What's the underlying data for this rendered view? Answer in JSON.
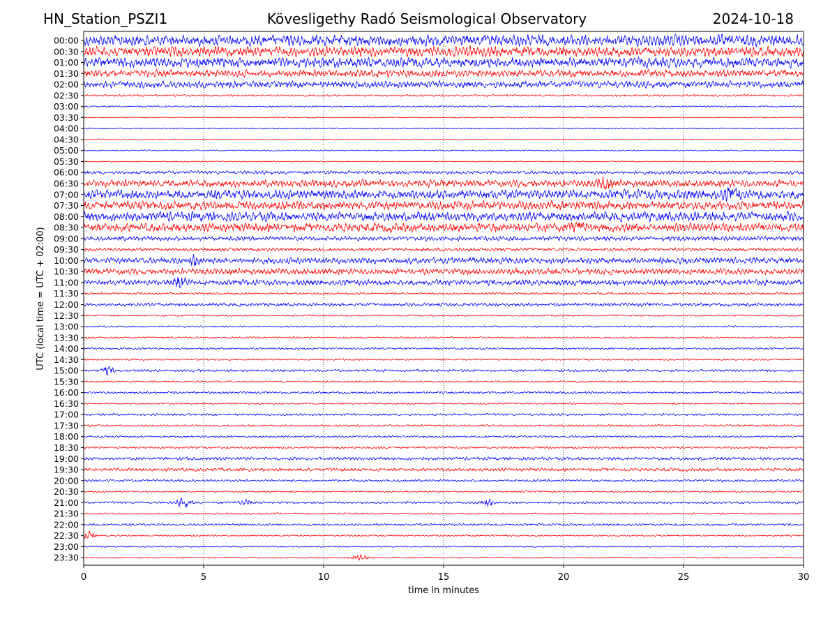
{
  "header": {
    "station": "HN_Station_PSZI1",
    "observatory": "Kövesligethy Radó Seismological Observatory",
    "date": "2024-10-18"
  },
  "chart_data": {
    "type": "line",
    "title": "Kövesligethy Radó Seismological Observatory",
    "xlabel": "time in minutes",
    "ylabel": "UTC (local time = UTC + 02:00)",
    "xlim": [
      0,
      30
    ],
    "x_ticks": [
      "0",
      "5",
      "10",
      "15",
      "20",
      "25",
      "30"
    ],
    "grid": "vertical dotted lines at 5, 10, 15, 20, 25 minutes",
    "trace_colors": [
      "#0000ff",
      "#ff0000"
    ],
    "rows": [
      {
        "label": "00:00",
        "amplitude": 1.0
      },
      {
        "label": "00:30",
        "amplitude": 0.9
      },
      {
        "label": "01:00",
        "amplitude": 0.9
      },
      {
        "label": "01:30",
        "amplitude": 0.65
      },
      {
        "label": "02:00",
        "amplitude": 0.6
      },
      {
        "label": "02:30",
        "amplitude": 0.18
      },
      {
        "label": "03:00",
        "amplitude": 0.14
      },
      {
        "label": "03:30",
        "amplitude": 0.1
      },
      {
        "label": "04:00",
        "amplitude": 0.1
      },
      {
        "label": "04:30",
        "amplitude": 0.1
      },
      {
        "label": "05:00",
        "amplitude": 0.12
      },
      {
        "label": "05:30",
        "amplitude": 0.1
      },
      {
        "label": "06:00",
        "amplitude": 0.3
      },
      {
        "label": "06:30",
        "amplitude": 0.65
      },
      {
        "label": "07:00",
        "amplitude": 0.85
      },
      {
        "label": "07:30",
        "amplitude": 0.8
      },
      {
        "label": "08:00",
        "amplitude": 0.85
      },
      {
        "label": "08:30",
        "amplitude": 0.8
      },
      {
        "label": "09:00",
        "amplitude": 0.4
      },
      {
        "label": "09:30",
        "amplitude": 0.3
      },
      {
        "label": "10:00",
        "amplitude": 0.55
      },
      {
        "label": "10:30",
        "amplitude": 0.55
      },
      {
        "label": "11:00",
        "amplitude": 0.5
      },
      {
        "label": "11:30",
        "amplitude": 0.2
      },
      {
        "label": "12:00",
        "amplitude": 0.3
      },
      {
        "label": "12:30",
        "amplitude": 0.15
      },
      {
        "label": "13:00",
        "amplitude": 0.15
      },
      {
        "label": "13:30",
        "amplitude": 0.15
      },
      {
        "label": "14:00",
        "amplitude": 0.18
      },
      {
        "label": "14:30",
        "amplitude": 0.15
      },
      {
        "label": "15:00",
        "amplitude": 0.22
      },
      {
        "label": "15:30",
        "amplitude": 0.15
      },
      {
        "label": "16:00",
        "amplitude": 0.2
      },
      {
        "label": "16:30",
        "amplitude": 0.15
      },
      {
        "label": "17:00",
        "amplitude": 0.2
      },
      {
        "label": "17:30",
        "amplitude": 0.18
      },
      {
        "label": "18:00",
        "amplitude": 0.18
      },
      {
        "label": "18:30",
        "amplitude": 0.2
      },
      {
        "label": "19:00",
        "amplitude": 0.28
      },
      {
        "label": "19:30",
        "amplitude": 0.3
      },
      {
        "label": "20:00",
        "amplitude": 0.22
      },
      {
        "label": "20:30",
        "amplitude": 0.15
      },
      {
        "label": "21:00",
        "amplitude": 0.2
      },
      {
        "label": "21:30",
        "amplitude": 0.15
      },
      {
        "label": "22:00",
        "amplitude": 0.2
      },
      {
        "label": "22:30",
        "amplitude": 0.15
      },
      {
        "label": "23:00",
        "amplitude": 0.12
      },
      {
        "label": "23:30",
        "amplitude": 0.12
      }
    ],
    "events": [
      {
        "row": 20,
        "minute": 4.6,
        "strength": 0.8
      },
      {
        "row": 22,
        "minute": 4.0,
        "strength": 0.9
      },
      {
        "row": 30,
        "minute": 1.0,
        "strength": 0.6
      },
      {
        "row": 42,
        "minute": 4.2,
        "strength": 0.8
      },
      {
        "row": 42,
        "minute": 6.8,
        "strength": 0.4
      },
      {
        "row": 42,
        "minute": 16.8,
        "strength": 0.7
      },
      {
        "row": 13,
        "minute": 21.7,
        "strength": 0.8
      },
      {
        "row": 14,
        "minute": 27.0,
        "strength": 0.8
      },
      {
        "row": 17,
        "minute": 20.6,
        "strength": 0.6
      },
      {
        "row": 45,
        "minute": 0.2,
        "strength": 0.7
      },
      {
        "row": 47,
        "minute": 11.5,
        "strength": 0.6
      }
    ]
  }
}
